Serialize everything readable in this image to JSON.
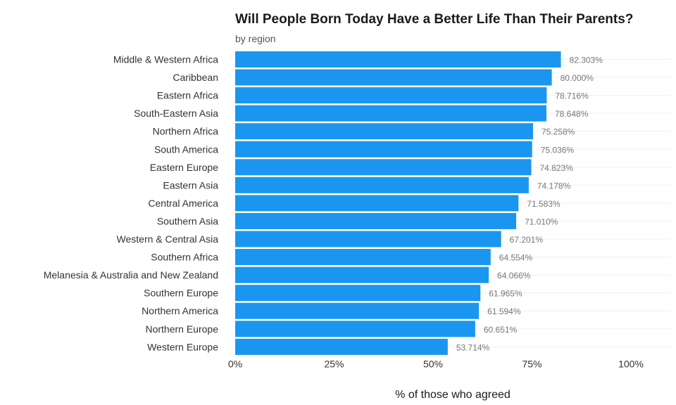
{
  "chart_data": {
    "type": "bar",
    "orientation": "horizontal",
    "title": "Will People Born Today Have a Better Life Than Their Parents?",
    "subtitle": "by region",
    "xlabel": "% of those who agreed",
    "ylabel": "",
    "xlim": [
      0,
      100
    ],
    "xticks": [
      "0%",
      "25%",
      "50%",
      "75%",
      "100%"
    ],
    "bar_color": "#1a96f0",
    "grid": true,
    "categories": [
      "Middle & Western Africa",
      "Caribbean",
      "Eastern Africa",
      "South-Eastern Asia",
      "Northern Africa",
      "South America",
      "Eastern Europe",
      "Eastern Asia",
      "Central America",
      "Southern Asia",
      "Western & Central Asia",
      "Southern Africa",
      "Melanesia & Australia and New Zealand",
      "Southern Europe",
      "Northern America",
      "Northern Europe",
      "Western Europe"
    ],
    "values": [
      82.303,
      80.0,
      78.716,
      78.648,
      75.258,
      75.036,
      74.823,
      74.178,
      71.583,
      71.01,
      67.201,
      64.554,
      64.066,
      61.965,
      61.594,
      60.651,
      53.714
    ],
    "value_labels": [
      "82.303%",
      "80.000%",
      "78.716%",
      "78.648%",
      "75.258%",
      "75.036%",
      "74.823%",
      "74.178%",
      "71.583%",
      "71.010%",
      "67.201%",
      "64.554%",
      "64.066%",
      "61.965%",
      "61.594%",
      "60.651%",
      "53.714%"
    ]
  }
}
